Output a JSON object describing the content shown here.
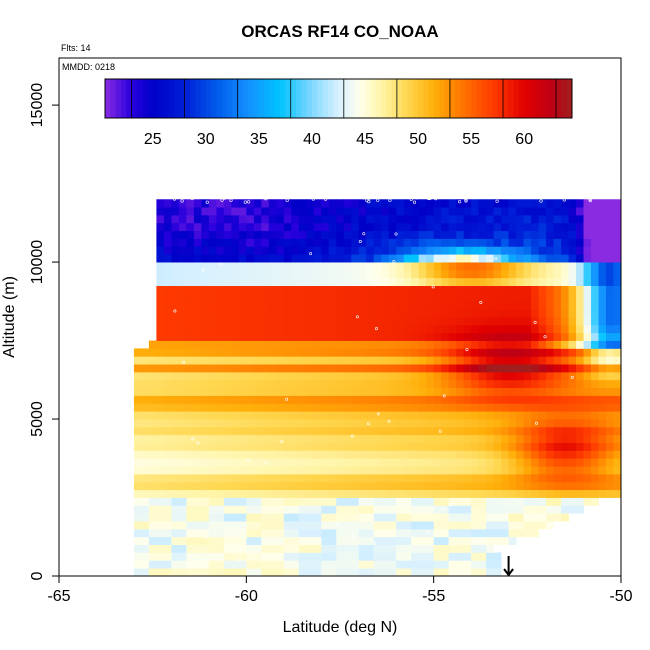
{
  "chart_data": {
    "type": "heatmap",
    "title": "ORCAS RF14 CO_NOAA",
    "subtitle_flights": "Flts: 14",
    "subtitle_date": "MMDD: 0218",
    "xlabel": "Latitude (deg N)",
    "ylabel": "Altitude (m)",
    "xlim": [
      -65,
      -50
    ],
    "ylim": [
      0,
      16500
    ],
    "x_ticks": [
      -65,
      -60,
      -55,
      -50
    ],
    "x_tick_labels": [
      "-65",
      "-60",
      "-55",
      "-50"
    ],
    "y_ticks": [
      0,
      5000,
      10000,
      15000
    ],
    "y_tick_labels": [
      "0",
      "5000",
      "10000",
      "15000"
    ],
    "colorbar": {
      "range": [
        20.5,
        64.5
      ],
      "ticks": [
        25,
        30,
        35,
        40,
        45,
        50,
        55,
        60
      ],
      "tick_labels": [
        "25",
        "30",
        "35",
        "40",
        "45",
        "50",
        "55",
        "60"
      ],
      "placement": "top-inside"
    },
    "grid": false,
    "marker": {
      "latitude": -53,
      "altitude": 0,
      "symbol": "down-arrow"
    },
    "field": {
      "lat_range": [
        -63,
        -50
      ],
      "alt_range": [
        0,
        12500
      ],
      "cell_lat": 0.2,
      "cell_alt": 250,
      "layers": [
        {
          "alt_bottom": 0,
          "alt_top": 2500,
          "value": 44,
          "lat_start": -63
        },
        {
          "alt_bottom": 2500,
          "alt_top": 4500,
          "value": 47,
          "lat_start": -63
        },
        {
          "alt_bottom": 4500,
          "alt_top": 7200,
          "value": 50,
          "lat_start": -63
        },
        {
          "alt_bottom": 7200,
          "alt_top": 7500,
          "value": 53,
          "lat_start": -62.6
        },
        {
          "alt_bottom": 7500,
          "alt_top": 9200,
          "value": 58,
          "lat_start": -62.5
        },
        {
          "alt_bottom": 9200,
          "alt_top": 10000,
          "value": 44,
          "lat_start": -62.5
        },
        {
          "alt_bottom": 10000,
          "alt_top": 12000,
          "value": 27,
          "lat_start": -62.5
        }
      ],
      "features": [
        {
          "name": "upper-blue-core",
          "lat": -60,
          "alt": 11000,
          "value": 24
        },
        {
          "name": "upper-mid-blue",
          "lat": -56,
          "alt": 11200,
          "value": 30
        },
        {
          "name": "warm-tongue",
          "lat": -54,
          "alt": 9800,
          "value": 52
        },
        {
          "name": "red-core-mid",
          "lat": -53,
          "alt": 6700,
          "value": 61
        },
        {
          "name": "red-core-low",
          "lat": -51.5,
          "alt": 4000,
          "value": 58
        },
        {
          "name": "north-edge-cold",
          "lat": -50.3,
          "alt": 9000,
          "value": 35
        }
      ]
    }
  }
}
